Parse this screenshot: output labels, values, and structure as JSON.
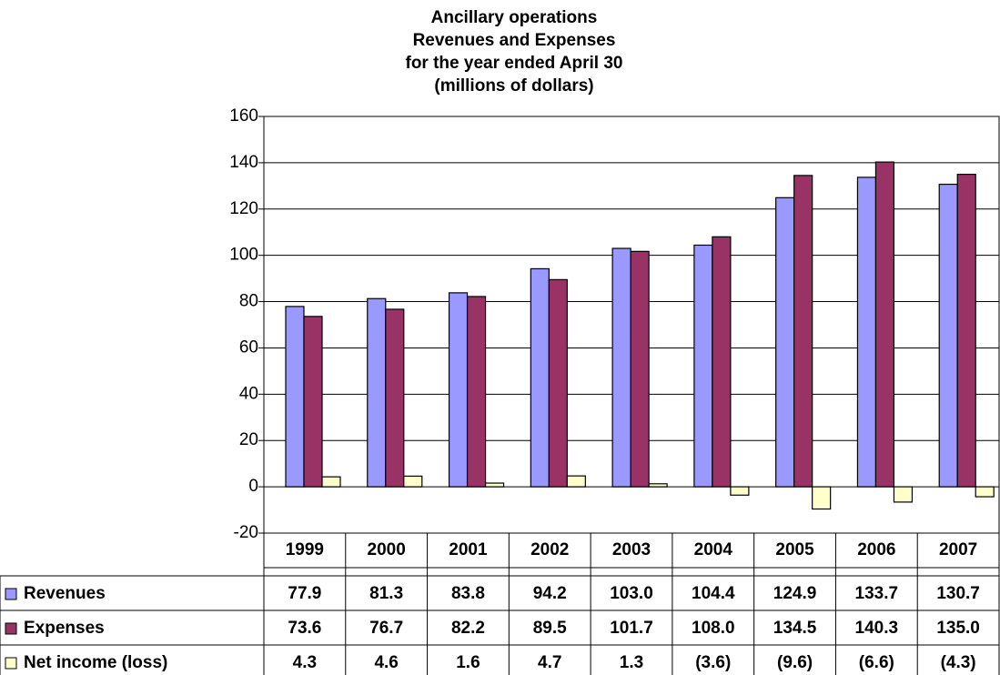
{
  "chart_data": {
    "type": "bar",
    "title": [
      "Ancillary operations",
      "Revenues and Expenses",
      "for the year ended April 30",
      "(millions of dollars)"
    ],
    "categories": [
      "1999",
      "2000",
      "2001",
      "2002",
      "2003",
      "2004",
      "2005",
      "2006",
      "2007"
    ],
    "series": [
      {
        "name": "Revenues",
        "color": "#9999ff",
        "values": [
          77.9,
          81.3,
          83.8,
          94.2,
          103.0,
          104.4,
          124.9,
          133.7,
          130.7
        ],
        "value_labels": [
          "77.9",
          "81.3",
          "83.8",
          "94.2",
          "103.0",
          "104.4",
          "124.9",
          "133.7",
          "130.7"
        ]
      },
      {
        "name": "Expenses",
        "color": "#993366",
        "values": [
          73.6,
          76.7,
          82.2,
          89.5,
          101.7,
          108.0,
          134.5,
          140.3,
          135.0
        ],
        "value_labels": [
          "73.6",
          "76.7",
          "82.2",
          "89.5",
          "101.7",
          "108.0",
          "134.5",
          "140.3",
          "135.0"
        ]
      },
      {
        "name": "Net income (loss)",
        "color": "#ffffcc",
        "values": [
          4.3,
          4.6,
          1.6,
          4.7,
          1.3,
          -3.6,
          -9.6,
          -6.6,
          -4.3
        ],
        "value_labels": [
          "4.3",
          "4.6",
          "1.6",
          "4.7",
          "1.3",
          "(3.6)",
          "(9.6)",
          "(6.6)",
          "(4.3)"
        ]
      }
    ],
    "ylim": [
      -20,
      160
    ],
    "yticks": [
      -20,
      0,
      20,
      40,
      60,
      80,
      100,
      120,
      140,
      160
    ],
    "grid": true
  }
}
